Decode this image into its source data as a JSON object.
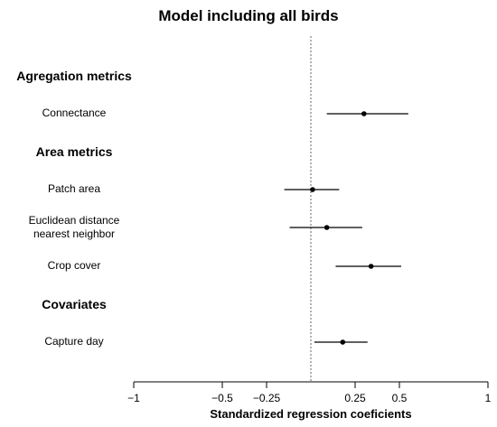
{
  "chart_data": {
    "type": "forest",
    "title": "Model including all birds",
    "xlabel": "Standardized regression coeficients",
    "xlim": [
      -1,
      1
    ],
    "xticks": [
      {
        "value": -1,
        "label": "−1"
      },
      {
        "value": -0.5,
        "label": "−0.5"
      },
      {
        "value": -0.25,
        "label": "−0.25"
      },
      {
        "value": 0.25,
        "label": "0.25"
      },
      {
        "value": 0.5,
        "label": "0.5"
      },
      {
        "value": 1,
        "label": "1"
      }
    ],
    "reference_line": 0,
    "groups": [
      {
        "label": "Agregation metrics",
        "items": [
          {
            "label": "Connectance",
            "estimate": 0.3,
            "lower": 0.09,
            "upper": 0.55
          }
        ]
      },
      {
        "label": "Area metrics",
        "items": [
          {
            "label": "Patch area",
            "estimate": 0.01,
            "lower": -0.15,
            "upper": 0.16
          },
          {
            "label": "Euclidean distance nearest neighbor",
            "label_lines": [
              "Euclidean distance",
              "nearest neighbor"
            ],
            "estimate": 0.09,
            "lower": -0.12,
            "upper": 0.29
          },
          {
            "label": "Crop cover",
            "estimate": 0.34,
            "lower": 0.14,
            "upper": 0.51
          }
        ]
      },
      {
        "label": "Covariates",
        "items": [
          {
            "label": "Capture day",
            "estimate": 0.18,
            "lower": 0.02,
            "upper": 0.32
          }
        ]
      }
    ]
  }
}
